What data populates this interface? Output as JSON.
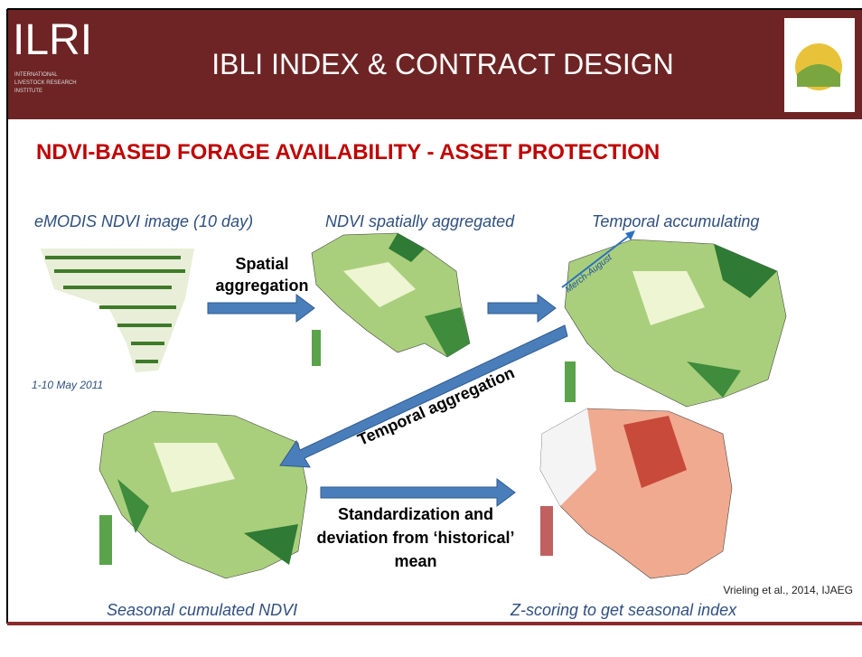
{
  "header": {
    "logo": "ILRI",
    "logo_subtitle": [
      "INTERNATIONAL",
      "LIVESTOCK RESEARCH",
      "INSTITUTE"
    ],
    "title": "IBLI INDEX & CONTRACT DESIGN"
  },
  "subtitle": "NDVI-BASED FORAGE AVAILABILITY - ASSET PROTECTION",
  "labels": {
    "emodis": "eMODIS NDVI image (10 day)",
    "spatial_map": "NDVI spatially aggregated",
    "temporal_map": "Temporal accumulating",
    "date": "1-10 May 2011",
    "seasonal": "Seasonal cumulated NDVI",
    "zscore": "Z-scoring to get seasonal index"
  },
  "arrows": {
    "spatial": [
      "Spatial",
      "aggregation"
    ],
    "season": "Merch-August",
    "temporal": "Temporal aggregation",
    "standardization": [
      "Standardization and",
      "deviation from ‘historical’",
      "mean"
    ]
  },
  "citation": "Vrieling et al., 2014, IJAEG"
}
